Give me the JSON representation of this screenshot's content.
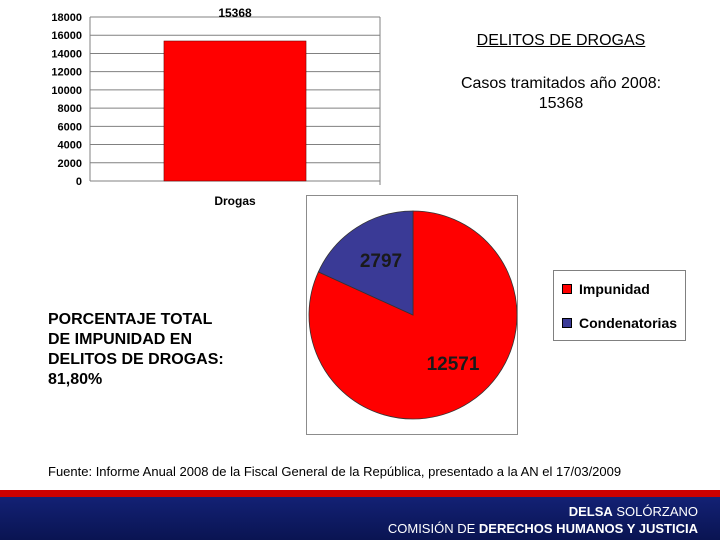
{
  "chart_data": [
    {
      "type": "bar",
      "title": "",
      "categories": [
        "Drogas"
      ],
      "values": [
        15368
      ],
      "data_labels": [
        "15368"
      ],
      "ylim": [
        0,
        18000
      ],
      "yticks": [
        0,
        2000,
        4000,
        6000,
        8000,
        10000,
        12000,
        14000,
        16000,
        18000
      ],
      "ytick_labels": [
        "0",
        "2000",
        "4000",
        "6000",
        "8000",
        "10000",
        "12000",
        "14000",
        "16000",
        "18000"
      ],
      "grid": true,
      "bar_color": "#ff0000"
    },
    {
      "type": "pie",
      "slices": [
        {
          "name": "Impunidad",
          "value": 12571,
          "label": "12571",
          "color": "#ff0000"
        },
        {
          "name": "Condenatorias",
          "value": 2797,
          "label": "2797",
          "color": "#3a3a96"
        }
      ],
      "legend": {
        "position": "right",
        "entries": [
          "Impunidad",
          "Condenatorias"
        ]
      }
    }
  ],
  "header": {
    "title": "DELITOS DE DROGAS",
    "subtitle_line1": "Casos tramitados año 2008:",
    "subtitle_line2": "15368"
  },
  "impunity": {
    "line1": "PORCENTAJE TOTAL",
    "line2": "DE IMPUNIDAD EN",
    "line3": "DELITOS DE DROGAS:",
    "line4": "81,80%"
  },
  "source": "Fuente: Informe Anual 2008 de la Fiscal General de la República, presentado a la AN el 17/03/2009",
  "footer": {
    "name_first": "DELSA",
    "name_last": "SOLÓRZANO",
    "committee_prefix": "COMISIÓN DE",
    "committee_name": "DERECHOS HUMANOS Y JUSTICIA"
  },
  "colors": {
    "accent_red": "#ff0000",
    "accent_blue": "#3a3a96",
    "footer_blue": "#14237a"
  }
}
